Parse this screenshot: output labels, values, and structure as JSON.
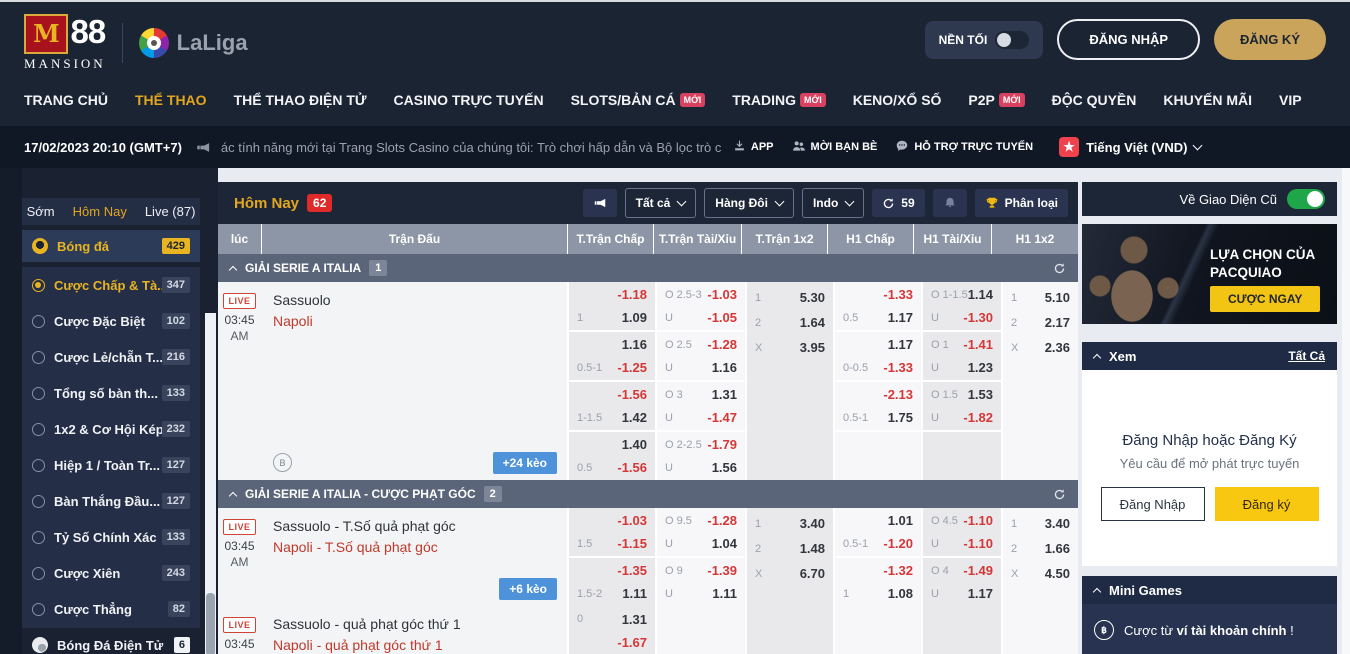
{
  "brand": {
    "logo_m": "M",
    "logo_88": "88",
    "logo_mansion": "MANSION",
    "partner": "LaLiga"
  },
  "header": {
    "dark_mode_label": "NỀN TỐI",
    "login_label": "ĐĂNG NHẬP",
    "register_label": "ĐĂNG KÝ"
  },
  "nav": {
    "items": [
      {
        "label": "TRANG CHỦ"
      },
      {
        "label": "THỂ THAO",
        "active": true
      },
      {
        "label": "THỂ THAO ĐIỆN TỬ"
      },
      {
        "label": "CASINO TRỰC TUYẾN"
      },
      {
        "label": "SLOTS/BẢN CÁ",
        "badge": "MỚI"
      },
      {
        "label": "TRADING",
        "badge": "MỚI"
      },
      {
        "label": "KENO/XỔ SỐ"
      },
      {
        "label": "P2P",
        "badge": "MỚI"
      },
      {
        "label": "ĐỘC QUYỀN"
      },
      {
        "label": "KHUYẾN MÃI"
      },
      {
        "label": "VIP"
      }
    ]
  },
  "ticker": {
    "datetime": "17/02/2023 20:10 (GMT+7)",
    "message": "ác tính năng mới tại Trang Slots Casino của chúng tôi: Trò chơi hấp dẫn và Bộ lọc trò chơi cho phép bạn tìm thấy các trò chơi một cách dễ",
    "links": [
      {
        "label": "APP",
        "icon": "app-download-icon"
      },
      {
        "label": "MỜI BẠN BÈ",
        "icon": "invite-friends-icon"
      },
      {
        "label": "HỖ TRỢ TRỰC TUYẾN",
        "icon": "live-chat-icon"
      }
    ],
    "language": "Tiếng Việt (VND)"
  },
  "sidebar": {
    "tabs": [
      {
        "label": "Sớm"
      },
      {
        "label": "Hôm Nay",
        "active": true
      },
      {
        "label": "Live (87)"
      }
    ],
    "items": [
      {
        "label": "Bóng đá",
        "count": "429",
        "icon": "football",
        "selected": true,
        "gold": true,
        "badge": "gold"
      },
      {
        "label": "Cược Chấp & Tà...",
        "count": "347",
        "icon": "radio-on",
        "gold": true
      },
      {
        "label": "Cược Đặc Biệt",
        "count": "102",
        "icon": "radio"
      },
      {
        "label": "Cược Lẻ/chẵn T...",
        "count": "216",
        "icon": "radio"
      },
      {
        "label": "Tổng số bàn th...",
        "count": "133",
        "icon": "radio"
      },
      {
        "label": "1x2 & Cơ Hội Kép",
        "count": "232",
        "icon": "radio"
      },
      {
        "label": "Hiệp 1 / Toàn Tr...",
        "count": "127",
        "icon": "radio"
      },
      {
        "label": "Bàn Thắng Đầu...",
        "count": "127",
        "icon": "radio"
      },
      {
        "label": "Tỷ Số Chính Xác",
        "count": "133",
        "icon": "radio"
      },
      {
        "label": "Cược Xiên",
        "count": "243",
        "icon": "radio"
      },
      {
        "label": "Cược Thẳng",
        "count": "82",
        "icon": "radio"
      },
      {
        "label": "Bóng Đá Điện Tử",
        "count": "6",
        "icon": "football-gray",
        "badge": "white"
      }
    ]
  },
  "main": {
    "title": "Hôm Nay",
    "title_badge": "62",
    "toolbar": {
      "filter_all": "Tất cả",
      "filter_rows": "Hàng Đôi",
      "filter_odds": "Indo",
      "refresh_count": "59",
      "rank_label": "Phân loại"
    },
    "columns": [
      "lúc",
      "Trận Đấu",
      "T.Trận Chấp",
      "T.Trận Tài/Xỉu",
      "T.Trận 1x2",
      "H1 Chấp",
      "H1 Tài/Xỉu",
      "H1 1x2"
    ],
    "sections": [
      {
        "title": "GIẢI SERIE A ITALIA",
        "badge": "1",
        "matches": [
          {
            "live": "LIVE",
            "time": "03:45",
            "ampm": "AM",
            "home": "Sassuolo",
            "away": "Napoli",
            "more": "+24 kèo",
            "bookmark": "B",
            "chap": [
              [
                [
                  "",
                  "-1.18"
                ],
                [
                  "1",
                  "1.09"
                ]
              ],
              [
                [
                  "",
                  "1.16"
                ],
                [
                  "0.5-1",
                  "-1.25"
                ]
              ],
              [
                [
                  "",
                  "-1.56"
                ],
                [
                  "1-1.5",
                  "1.42"
                ]
              ],
              [
                [
                  "",
                  "1.40"
                ],
                [
                  "0.5",
                  "-1.56"
                ]
              ]
            ],
            "ou": [
              [
                [
                  "O 2.5-3",
                  "-1.03"
                ],
                [
                  "U",
                  "-1.05"
                ]
              ],
              [
                [
                  "O 2.5",
                  "-1.28"
                ],
                [
                  "U",
                  "1.16"
                ]
              ],
              [
                [
                  "O 3",
                  "1.31"
                ],
                [
                  "U",
                  "-1.47"
                ]
              ],
              [
                [
                  "O 2-2.5",
                  "-1.79"
                ],
                [
                  "U",
                  "1.56"
                ]
              ]
            ],
            "x12": [
              [
                "1",
                "5.30"
              ],
              [
                "2",
                "1.64"
              ],
              [
                "X",
                "3.95"
              ]
            ],
            "h1chap": [
              [
                [
                  "",
                  "-1.33"
                ],
                [
                  "0.5",
                  "1.17"
                ]
              ],
              [
                [
                  "",
                  "1.17"
                ],
                [
                  "0-0.5",
                  "-1.33"
                ]
              ],
              [
                [
                  "",
                  "-2.13"
                ],
                [
                  "0.5-1",
                  "1.75"
                ]
              ],
              []
            ],
            "h1ou": [
              [
                [
                  "O 1-1.5",
                  "1.14"
                ],
                [
                  "U",
                  "-1.30"
                ]
              ],
              [
                [
                  "O 1",
                  "-1.41"
                ],
                [
                  "U",
                  "1.23"
                ]
              ],
              [
                [
                  "O 1.5",
                  "1.53"
                ],
                [
                  "U",
                  "-1.82"
                ]
              ],
              []
            ],
            "h1x12": [
              [
                "1",
                "5.10"
              ],
              [
                "2",
                "2.17"
              ],
              [
                "X",
                "2.36"
              ]
            ]
          }
        ]
      },
      {
        "title": "GIẢI SERIE A ITALIA - CƯỢC PHẠT GÓC",
        "badge": "2",
        "matches": [
          {
            "live": "LIVE",
            "time": "03:45",
            "ampm": "AM",
            "home": "Sassuolo - T.Số quả phạt góc",
            "away": "Napoli - T.Số quả phạt góc",
            "more": "+6 kèo",
            "chap": [
              [
                [
                  "",
                  "-1.03"
                ],
                [
                  "1.5",
                  "-1.15"
                ]
              ],
              [
                [
                  "",
                  "-1.35"
                ],
                [
                  "1.5-2",
                  "1.11"
                ]
              ]
            ],
            "ou": [
              [
                [
                  "O 9.5",
                  "-1.28"
                ],
                [
                  "U",
                  "1.04"
                ]
              ],
              [
                [
                  "O 9",
                  "-1.39"
                ],
                [
                  "U",
                  "1.11"
                ]
              ]
            ],
            "x12": [
              [
                "1",
                "3.40"
              ],
              [
                "2",
                "1.48"
              ],
              [
                "X",
                "6.70"
              ]
            ],
            "h1chap": [
              [
                [
                  "",
                  "1.01"
                ],
                [
                  "0.5-1",
                  "-1.20"
                ]
              ],
              [
                [
                  "",
                  "-1.32"
                ],
                [
                  "1",
                  "1.08"
                ]
              ]
            ],
            "h1ou": [
              [
                [
                  "O 4.5",
                  "-1.10"
                ],
                [
                  "U",
                  "-1.10"
                ]
              ],
              [
                [
                  "O 4",
                  "-1.49"
                ],
                [
                  "U",
                  "1.17"
                ]
              ]
            ],
            "h1x12": [
              [
                "1",
                "3.40"
              ],
              [
                "2",
                "1.66"
              ],
              [
                "X",
                "4.50"
              ]
            ]
          },
          {
            "live": "LIVE",
            "time": "03:45",
            "ampm": "",
            "home": "Sassuolo - quả phạt góc thứ 1",
            "away": "Napoli - quả phạt góc thứ 1",
            "chap": [
              [
                [
                  "0",
                  "1.31"
                ],
                [
                  "",
                  "-1.67"
                ]
              ]
            ],
            "ou": [
              []
            ],
            "x12": [],
            "h1chap": [
              []
            ],
            "h1ou": [
              []
            ],
            "h1x12": []
          }
        ]
      }
    ]
  },
  "right": {
    "old_ui_label": "Về Giao Diện Cũ",
    "banner": {
      "line1": "LỰA CHỌN CỦA",
      "line2": "PACQUIAO",
      "cta": "CƯỢC NGAY"
    },
    "xem": {
      "title": "Xem",
      "all_label": "Tất Cả",
      "login_title": "Đăng Nhập hoặc Đăng Ký",
      "login_sub": "Yêu cầu để mở phát trực tuyến",
      "login_btn": "Đăng Nhập",
      "register_btn": "Đăng ký"
    },
    "minigames": {
      "title": "Mini Games",
      "text_prefix": "Cược từ",
      "text_bold": "ví tài khoản chính",
      "text_suffix": "!"
    }
  },
  "colors": {
    "gold": "#e3a71e",
    "navy": "#1b2433",
    "negative_odds": "#d53636",
    "live_red": "#d04437",
    "more_blue": "#4e92d9",
    "toggle_green": "#1fa64a"
  }
}
